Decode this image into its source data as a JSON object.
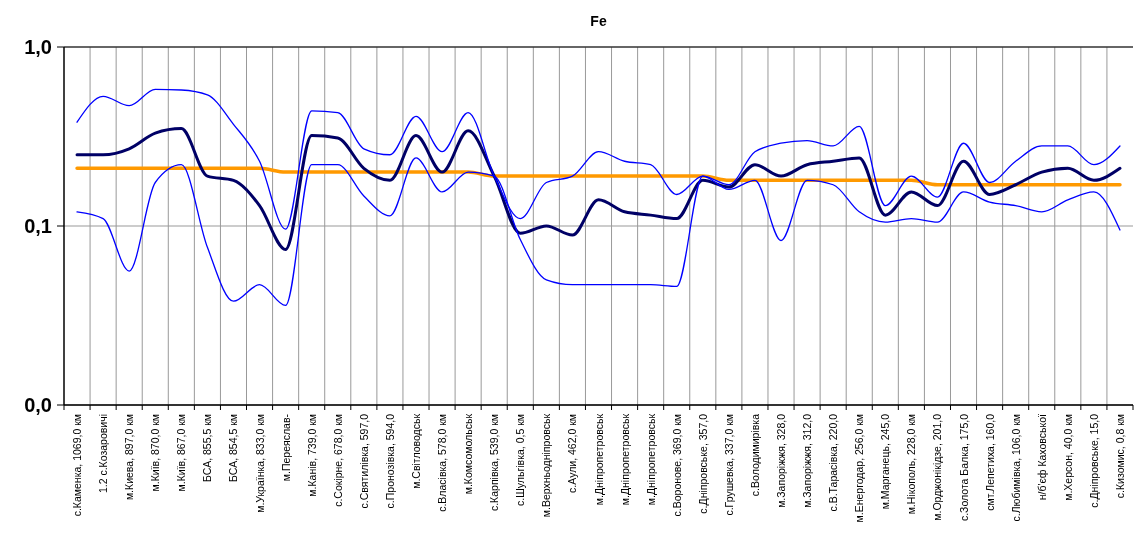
{
  "chart_data": {
    "type": "line",
    "title": "Fe",
    "log": true,
    "grid": true,
    "categories": [
      "с.Каменка, 1069,0 км",
      "1.2  с.Козаровичі",
      "м.Киева, 897,0 км",
      "м.Київ, 870,0 км",
      "м.Київ, 867,0 км",
      "БСА, 855,5 км",
      "БСА, 854,5 км",
      "м.Українка, 833,0 км",
      "м.Переяслав-",
      "м.Канів, 739,0 км",
      "с.Сокірне, 678,0 км",
      "с.Святилівка, 597,0",
      "с.Пронозівка, 594,0",
      "м.Світловодськ",
      "с.Власівка, 578,0 км",
      "м.Комсомольськ",
      "с.Карпівка, 539,0 км",
      "с.Шульгівка, 0,5 км",
      "м.Верхньодніпровськ",
      "с.Аули, 462,0 км",
      "м.Дніпропетровськ",
      "м.Дніпропетровськ",
      "м.Дніпропетровськ",
      "с.Воронове, 369,0 км",
      "с.Дніпровське, 357,0",
      "с.Грушевка, 337,0 км",
      "с.Володимирівка",
      "м.Запоріжжя, 328,0",
      "м.Запоріжжя, 312,0",
      "с.В.Тарасівка, 220,0",
      "м.Енергодар, 256,0 км",
      "м.Марганець, 245,0",
      "м.Нікополь, 228,0 км",
      "м.Орджонікідзе, 201,0",
      "с.Золота Балка, 175,0",
      "смт.Лепетиха, 160,0",
      "с.Любимівка, 106,0 км",
      "н/б'єф Каховської",
      "м.Херсон, 40,0 км",
      "с.Дніпровське, 15,0",
      "с.Кизомис, 0,8 км"
    ],
    "ylim": [
      0.01,
      1
    ],
    "yticks": [
      {
        "value": 0.01,
        "label": "0,0"
      },
      {
        "value": 0.1,
        "label": "0,1"
      },
      {
        "value": 1,
        "label": "1,0"
      }
    ],
    "series": [
      {
        "color": "#0000ff",
        "values": [
          0.38,
          0.53,
          0.47,
          0.58,
          0.575,
          0.54,
          0.37,
          0.23,
          0.096,
          0.44,
          0.43,
          0.27,
          0.25,
          0.41,
          0.26,
          0.43,
          0.19,
          0.11,
          0.175,
          0.19,
          0.26,
          0.23,
          0.22,
          0.15,
          0.19,
          0.17,
          0.26,
          0.29,
          0.3,
          0.28,
          0.36,
          0.13,
          0.19,
          0.145,
          0.29,
          0.175,
          0.23,
          0.28,
          0.28,
          0.22,
          0.28
        ]
      },
      {
        "color": "#0000ff",
        "values": [
          0.12,
          0.11,
          0.056,
          0.175,
          0.22,
          0.076,
          0.038,
          0.047,
          0.036,
          0.22,
          0.22,
          0.147,
          0.114,
          0.24,
          0.155,
          0.2,
          0.19,
          0.084,
          0.05,
          0.047,
          0.047,
          0.047,
          0.047,
          0.046,
          0.19,
          0.16,
          0.18,
          0.083,
          0.18,
          0.17,
          0.12,
          0.105,
          0.11,
          0.105,
          0.155,
          0.136,
          0.13,
          0.12,
          0.14,
          0.155,
          0.095
        ]
      },
      {
        "color": "#000066",
        "values": [
          0.25,
          0.25,
          0.27,
          0.33,
          0.35,
          0.19,
          0.18,
          0.13,
          0.074,
          0.32,
          0.31,
          0.21,
          0.18,
          0.32,
          0.2,
          0.34,
          0.19,
          0.091,
          0.1,
          0.089,
          0.14,
          0.12,
          0.115,
          0.11,
          0.18,
          0.165,
          0.22,
          0.19,
          0.22,
          0.23,
          0.24,
          0.115,
          0.155,
          0.13,
          0.23,
          0.15,
          0.17,
          0.2,
          0.21,
          0.18,
          0.21
        ]
      },
      {
        "color": "#ff9900",
        "values": [
          0.21,
          0.21,
          0.21,
          0.21,
          0.21,
          0.21,
          0.21,
          0.21,
          0.2,
          0.2,
          0.2,
          0.2,
          0.2,
          0.2,
          0.2,
          0.2,
          0.19,
          0.19,
          0.19,
          0.19,
          0.19,
          0.19,
          0.19,
          0.19,
          0.19,
          0.18,
          0.18,
          0.18,
          0.18,
          0.18,
          0.18,
          0.18,
          0.18,
          0.17,
          0.17,
          0.17,
          0.17,
          0.17,
          0.17,
          0.17,
          0.17
        ]
      }
    ]
  }
}
